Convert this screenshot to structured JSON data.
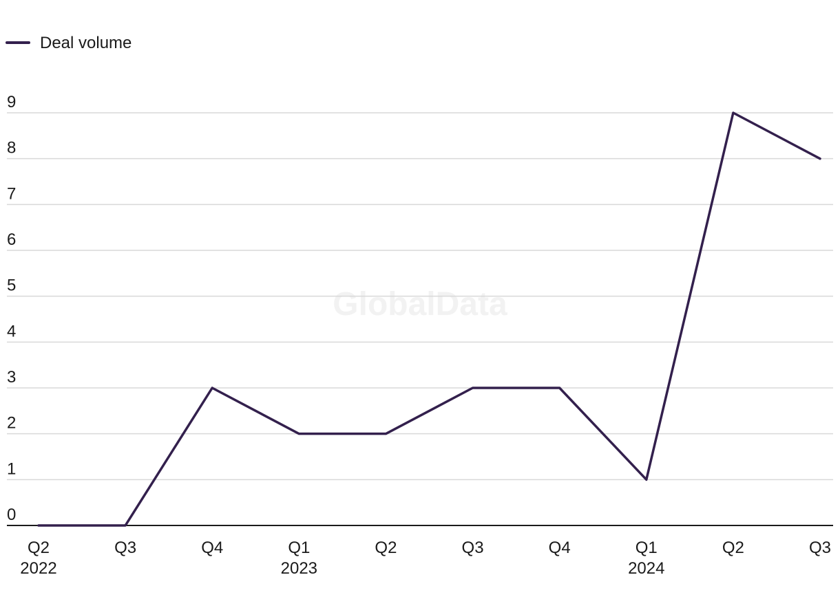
{
  "chart_data": {
    "type": "line",
    "watermark": "GlobalData",
    "categories": [
      {
        "quarter": "Q2",
        "year": "2022"
      },
      {
        "quarter": "Q3",
        "year": ""
      },
      {
        "quarter": "Q4",
        "year": ""
      },
      {
        "quarter": "Q1",
        "year": "2023"
      },
      {
        "quarter": "Q2",
        "year": ""
      },
      {
        "quarter": "Q3",
        "year": ""
      },
      {
        "quarter": "Q4",
        "year": ""
      },
      {
        "quarter": "Q1",
        "year": "2024"
      },
      {
        "quarter": "Q2",
        "year": ""
      },
      {
        "quarter": "Q3",
        "year": ""
      }
    ],
    "series": [
      {
        "name": "Deal volume",
        "values": [
          0,
          0,
          3,
          2,
          2,
          3,
          3,
          1,
          9,
          8
        ],
        "color": "#33204d"
      }
    ],
    "y_ticks": [
      "0",
      "1",
      "2",
      "3",
      "4",
      "5",
      "6",
      "7",
      "8",
      "9"
    ],
    "ylim": [
      0,
      9
    ],
    "grid": true,
    "legend_position": "top-left",
    "gridline_color": "#d9d9d9",
    "axis_color": "#1a1a1a"
  }
}
